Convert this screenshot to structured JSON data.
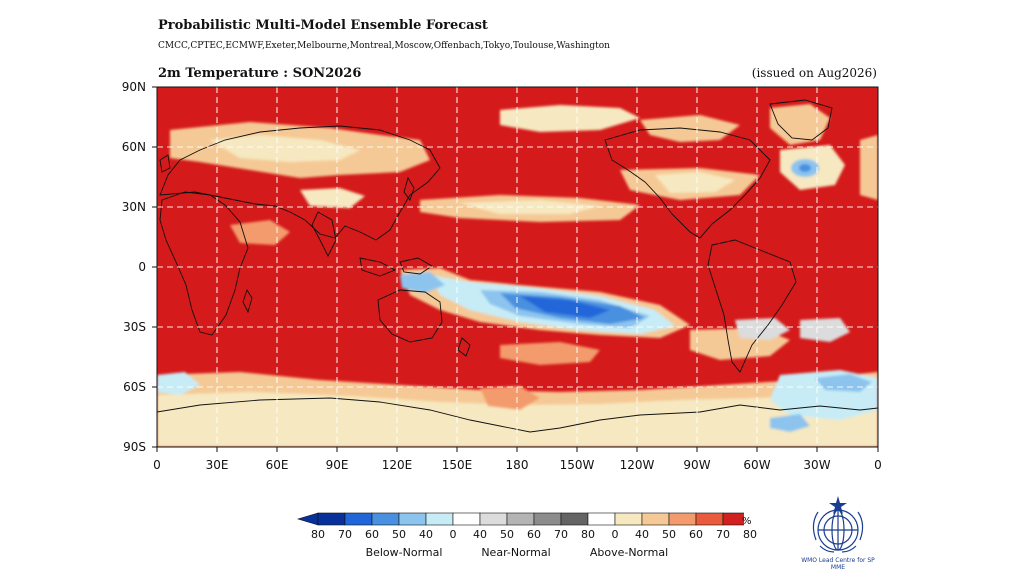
{
  "header": {
    "title": "Probabilistic Multi-Model Ensemble Forecast",
    "models": "CMCC,CPTEC,ECMWF,Exeter,Melbourne,Montreal,Moscow,Offenbach,Tokyo,Toulouse,Washington",
    "variable": "2m Temperature : SON2026",
    "issued": "(issued on Aug2026)"
  },
  "map": {
    "lat_labels": [
      "90N",
      "60N",
      "30N",
      "0",
      "30S",
      "60S",
      "90S"
    ],
    "lon_labels": [
      "0",
      "30E",
      "60E",
      "90E",
      "120E",
      "150E",
      "180",
      "150W",
      "120W",
      "90W",
      "60W",
      "30W",
      "0"
    ],
    "grid": "dashed white lines every 30 degrees"
  },
  "legend": {
    "ticks": [
      "80",
      "70",
      "60",
      "50",
      "40",
      "0",
      "40",
      "50",
      "60",
      "70",
      "80",
      "0",
      "40",
      "50",
      "60",
      "70",
      "80"
    ],
    "unit": "%",
    "categories": [
      "Below-Normal",
      "Near-Normal",
      "Above-Normal"
    ],
    "colors": {
      "below": [
        "#08309a",
        "#2166d9",
        "#4a90e0",
        "#8cc4ee",
        "#c7ecf6"
      ],
      "white": "#ffffff",
      "near": [
        "#dcdcdc",
        "#b4b4b4",
        "#8c8c8c",
        "#646464"
      ],
      "above": [
        "#f6e8c0",
        "#f5c995",
        "#f39b6c",
        "#ea5a3d",
        "#d21f1f"
      ]
    }
  },
  "logo": {
    "text": "WMO Lead Centre for SP MME"
  }
}
